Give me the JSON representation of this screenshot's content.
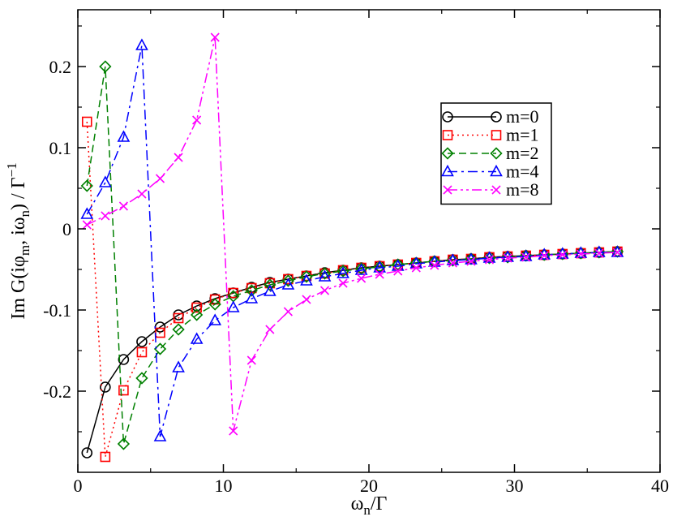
{
  "chart_data": {
    "type": "line",
    "title": "",
    "xlabel": "ω_n/Γ",
    "xlabel_main": "ω",
    "xlabel_sub": "n",
    "xlabel_tail": "/Γ",
    "ylabel": "Im G(iφ_m, iω_n) / Γ^-1",
    "ylabel_main": "Im G(iφ",
    "ylabel_sub1": "m",
    "ylabel_mid": ", iω",
    "ylabel_sub2": "n",
    "ylabel_tail": ") / Γ",
    "ylabel_sup": "−1",
    "xlim": [
      0,
      40
    ],
    "ylim": [
      -0.3,
      0.27
    ],
    "xticks": [
      0,
      10,
      20,
      30,
      40
    ],
    "xtick_labels": [
      "0",
      "10",
      "20",
      "30",
      "40"
    ],
    "yticks": [
      -0.2,
      -0.1,
      0,
      0.1,
      0.2
    ],
    "ytick_labels": [
      "-0.2",
      "-0.1",
      "0",
      "0.1",
      "0.2"
    ],
    "legend_position": "top-right",
    "x": [
      0.628,
      1.885,
      3.142,
      4.398,
      5.655,
      6.912,
      8.168,
      9.425,
      10.681,
      11.938,
      13.195,
      14.451,
      15.708,
      16.965,
      18.221,
      19.478,
      20.735,
      21.991,
      23.248,
      24.504,
      25.761,
      27.018,
      28.274,
      29.531,
      30.788,
      32.044,
      33.301,
      34.558,
      35.814,
      37.071
    ],
    "series": [
      {
        "name": "m=0",
        "color": "#000000",
        "marker": "circle",
        "linestyle": "solid",
        "values": [
          -0.276,
          -0.195,
          -0.161,
          -0.139,
          -0.121,
          -0.106,
          -0.095,
          -0.086,
          -0.079,
          -0.072,
          -0.066,
          -0.062,
          -0.058,
          -0.054,
          -0.051,
          -0.048,
          -0.046,
          -0.044,
          -0.042,
          -0.04,
          -0.038,
          -0.037,
          -0.035,
          -0.034,
          -0.033,
          -0.032,
          -0.031,
          -0.03,
          -0.029,
          -0.028
        ]
      },
      {
        "name": "m=1",
        "color": "#ff0000",
        "marker": "square",
        "linestyle": "dotted",
        "values": [
          0.132,
          -0.281,
          -0.199,
          -0.152,
          -0.128,
          -0.11,
          -0.097,
          -0.087,
          -0.079,
          -0.073,
          -0.067,
          -0.062,
          -0.058,
          -0.055,
          -0.051,
          -0.048,
          -0.046,
          -0.044,
          -0.042,
          -0.04,
          -0.038,
          -0.037,
          -0.035,
          -0.034,
          -0.033,
          -0.032,
          -0.031,
          -0.03,
          -0.029,
          -0.028
        ]
      },
      {
        "name": "m=2",
        "color": "#008000",
        "marker": "diamond",
        "linestyle": "dashed",
        "values": [
          0.053,
          0.2,
          -0.265,
          -0.184,
          -0.148,
          -0.124,
          -0.106,
          -0.093,
          -0.083,
          -0.076,
          -0.069,
          -0.064,
          -0.059,
          -0.055,
          -0.052,
          -0.049,
          -0.047,
          -0.044,
          -0.042,
          -0.04,
          -0.039,
          -0.037,
          -0.036,
          -0.035,
          -0.033,
          -0.032,
          -0.031,
          -0.03,
          -0.029,
          -0.028
        ]
      },
      {
        "name": "m=4",
        "color": "#0000ff",
        "marker": "triangle",
        "linestyle": "dashdot",
        "values": [
          0.018,
          0.057,
          0.113,
          0.226,
          -0.256,
          -0.171,
          -0.136,
          -0.113,
          -0.097,
          -0.086,
          -0.077,
          -0.069,
          -0.064,
          -0.059,
          -0.055,
          -0.051,
          -0.048,
          -0.046,
          -0.043,
          -0.041,
          -0.039,
          -0.038,
          -0.036,
          -0.035,
          -0.034,
          -0.032,
          -0.031,
          -0.03,
          -0.029,
          -0.029
        ]
      },
      {
        "name": "m=8",
        "color": "#ff00ff",
        "marker": "x",
        "linestyle": "dashdotdot",
        "values": [
          0.005,
          0.016,
          0.028,
          0.043,
          0.062,
          0.088,
          0.134,
          0.236,
          -0.249,
          -0.162,
          -0.124,
          -0.102,
          -0.087,
          -0.076,
          -0.067,
          -0.061,
          -0.056,
          -0.052,
          -0.048,
          -0.045,
          -0.042,
          -0.04,
          -0.038,
          -0.036,
          -0.035,
          -0.033,
          -0.032,
          -0.031,
          -0.03,
          -0.029
        ]
      }
    ]
  }
}
